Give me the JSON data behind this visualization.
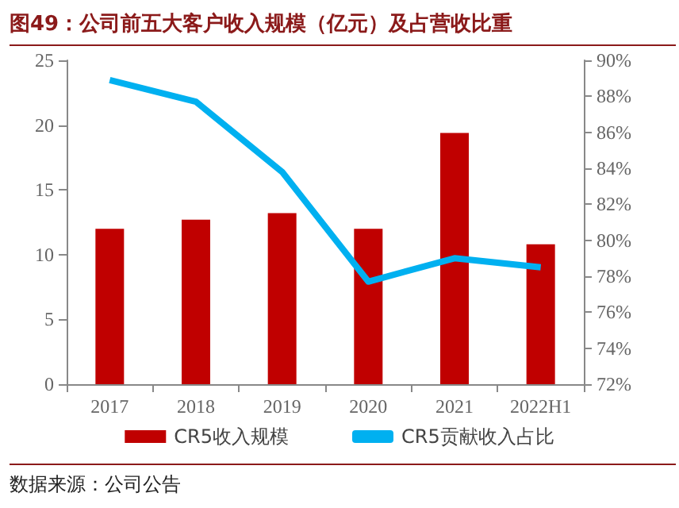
{
  "chart_data": {
    "type": "bar",
    "title": "图49：公司前五大客户收入规模（亿元）及占营收比重",
    "categories": [
      "2017",
      "2018",
      "2019",
      "2020",
      "2021",
      "2022H1"
    ],
    "series": [
      {
        "name": "CR5收入规模",
        "color": "#c00000",
        "values": [
          12.0,
          12.7,
          13.2,
          12.0,
          19.4,
          10.8
        ]
      },
      {
        "name": "CR5贡献收入占比",
        "type": "line",
        "axis": "y2",
        "color": "#00b0f0",
        "values": [
          88.9,
          87.7,
          83.8,
          77.7,
          79.0,
          78.5
        ]
      }
    ],
    "ylim": [
      0,
      25
    ],
    "yticks": [
      0,
      5,
      10,
      15,
      20,
      25
    ],
    "y2lim": [
      72,
      90
    ],
    "y2ticks": [
      {
        "value": 72,
        "label": "72%"
      },
      {
        "value": 74,
        "label": "74%"
      },
      {
        "value": 76,
        "label": "76%"
      },
      {
        "value": 78,
        "label": "78%"
      },
      {
        "value": 80,
        "label": "80%"
      },
      {
        "value": 82,
        "label": "82%"
      },
      {
        "value": 84,
        "label": "84%"
      },
      {
        "value": 86,
        "label": "86%"
      },
      {
        "value": 88,
        "label": "88%"
      },
      {
        "value": 90,
        "label": "90%"
      }
    ],
    "grid": false,
    "legend": "bottom",
    "marker": "none",
    "annotations": [
      "数据来源：公司公告"
    ]
  }
}
